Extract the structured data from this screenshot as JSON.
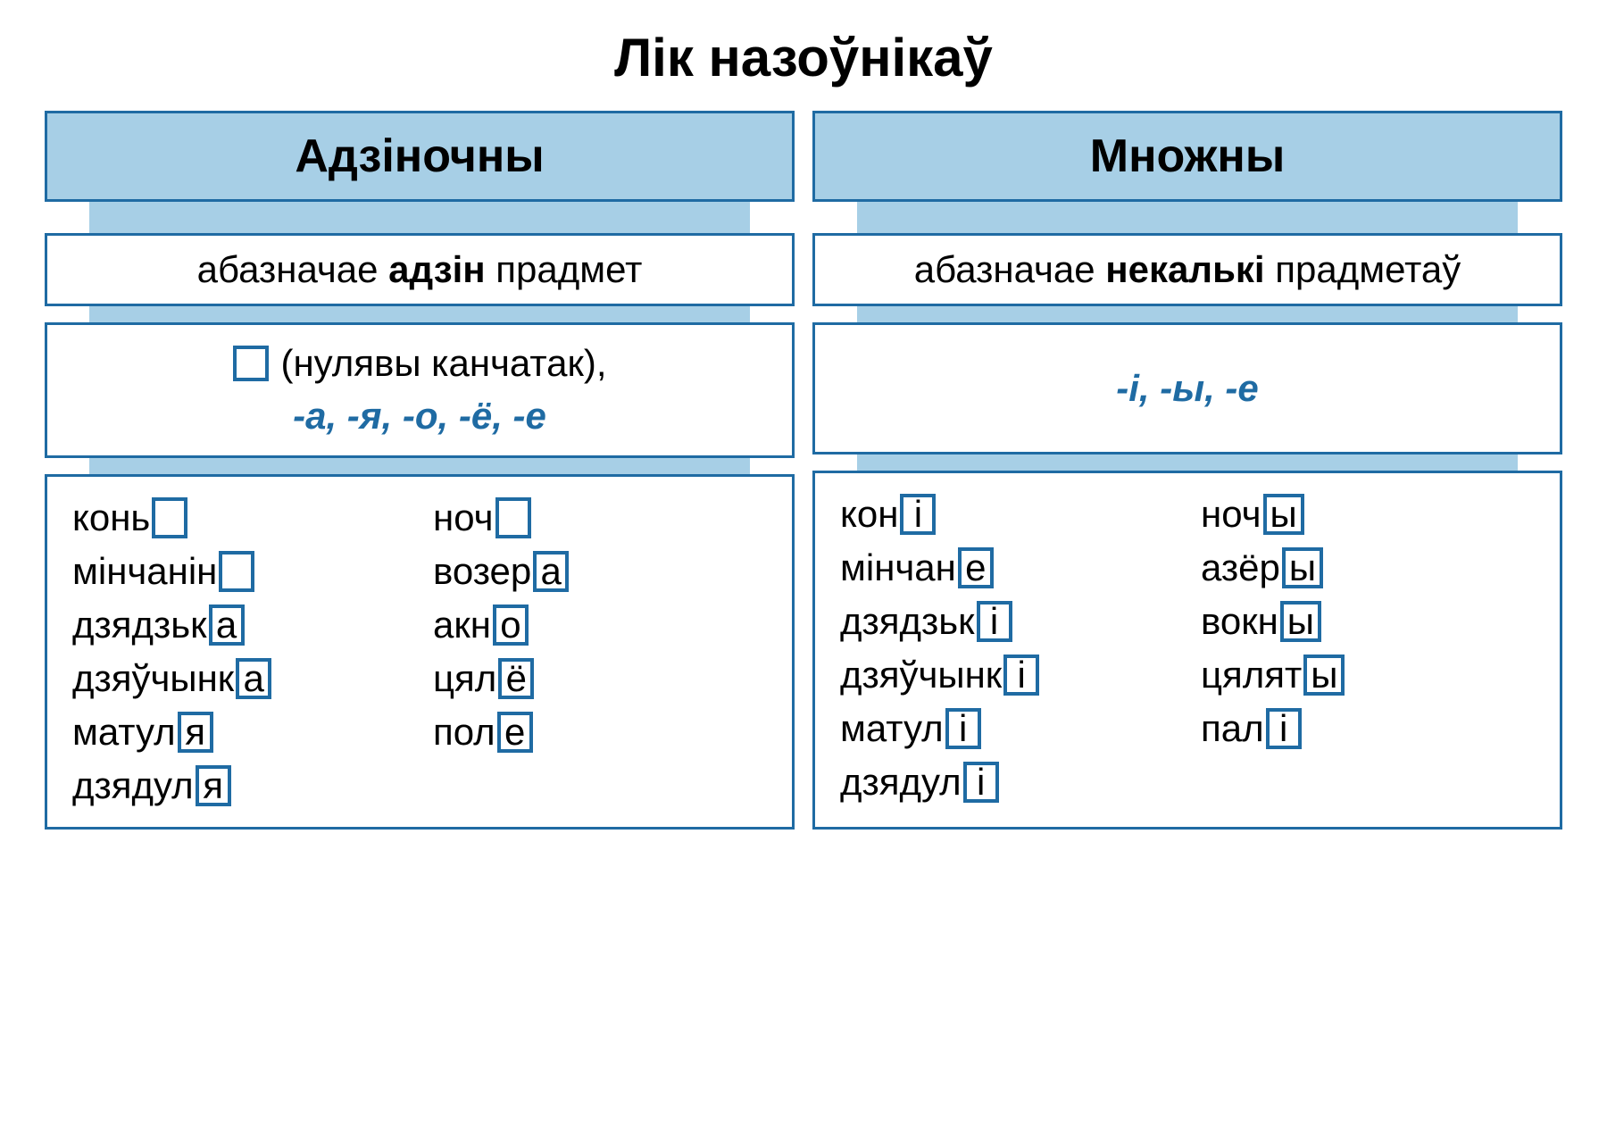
{
  "title": "Лік назоўнікаў",
  "colors": {
    "border": "#1f6ba3",
    "header_bg": "#a7cfe6",
    "connector_bg": "#a7cfe6",
    "endings_text": "#1f6ba3",
    "box_border": "#1f6ba3"
  },
  "columns": [
    {
      "header": "Адзіночны",
      "desc_pre": "абазначае ",
      "desc_bold": "адзін",
      "desc_post": " прадмет",
      "endings_has_null": true,
      "endings_null_label": "(нулявы канчатак),",
      "endings_suffixes": "-а, -я, -о, -ё, -е",
      "examples": {
        "left": [
          {
            "stem": "конь",
            "ending": ""
          },
          {
            "stem": "мінчанін",
            "ending": ""
          },
          {
            "stem": "дзядзьк",
            "ending": "а"
          },
          {
            "stem": "дзяўчынк",
            "ending": "а"
          },
          {
            "stem": "матул",
            "ending": "я"
          },
          {
            "stem": "дзядул",
            "ending": "я"
          }
        ],
        "right": [
          {
            "stem": "ноч",
            "ending": ""
          },
          {
            "stem": "возер",
            "ending": "а"
          },
          {
            "stem": "акн",
            "ending": "о"
          },
          {
            "stem": "цял",
            "ending": "ё"
          },
          {
            "stem": "пол",
            "ending": "е"
          }
        ]
      }
    },
    {
      "header": "Множны",
      "desc_pre": "абазначае ",
      "desc_bold": "некалькі",
      "desc_post": " прадметаў",
      "endings_has_null": false,
      "endings_suffixes": "-і, -ы, -е",
      "examples": {
        "left": [
          {
            "stem": "кон",
            "ending": "і"
          },
          {
            "stem": "мінчан",
            "ending": "е"
          },
          {
            "stem": "дзядзьк",
            "ending": "і"
          },
          {
            "stem": "дзяўчынк",
            "ending": "і"
          },
          {
            "stem": "матул",
            "ending": "і"
          },
          {
            "stem": "дзядул",
            "ending": "і"
          }
        ],
        "right": [
          {
            "stem": "ноч",
            "ending": "ы"
          },
          {
            "stem": "азёр",
            "ending": "ы"
          },
          {
            "stem": "вокн",
            "ending": "ы"
          },
          {
            "stem": "цялят",
            "ending": "ы"
          },
          {
            "stem": "пал",
            "ending": "і"
          }
        ]
      }
    }
  ]
}
